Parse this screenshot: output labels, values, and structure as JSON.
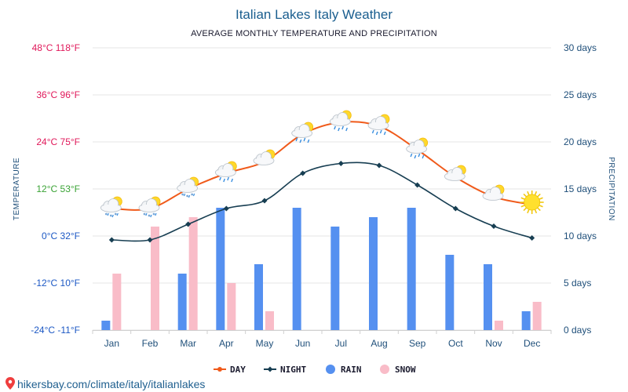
{
  "title": "Italian Lakes Italy Weather",
  "subtitle": "AVERAGE MONTHLY TEMPERATURE AND PRECIPITATION",
  "source": "hikersbay.com/climate/italy/italianlakes",
  "colors": {
    "day": "#f05a1a",
    "night": "#173e52",
    "rain": "#5590f0",
    "snow": "#f9bcc8",
    "title": "#1a5e8f",
    "axis_text": "#1f4f7a",
    "grid": "#e6e6e6"
  },
  "chart_data": {
    "type": "line+bar",
    "title": "Italian Lakes Italy Weather",
    "subtitle": "AVERAGE MONTHLY TEMPERATURE AND PRECIPITATION",
    "ylabel_left": "TEMPERATURE",
    "ylabel_right": "PRECIPITATION",
    "categories": [
      "Jan",
      "Feb",
      "Mar",
      "Apr",
      "May",
      "Jun",
      "Jul",
      "Aug",
      "Sep",
      "Oct",
      "Nov",
      "Dec"
    ],
    "ylim_left": [
      -24,
      48
    ],
    "ylim_right": [
      0,
      30
    ],
    "left_ticks": [
      {
        "value": 48,
        "label": "48°C 118°F",
        "color": "#e0185a"
      },
      {
        "value": 36,
        "label": "36°C 96°F",
        "color": "#e0185a"
      },
      {
        "value": 24,
        "label": "24°C 75°F",
        "color": "#e0185a"
      },
      {
        "value": 12,
        "label": "12°C 53°F",
        "color": "#3aa335"
      },
      {
        "value": 0,
        "label": "0°C 32°F",
        "color": "#1c58c4"
      },
      {
        "value": -12,
        "label": "-12°C 10°F",
        "color": "#1c58c4"
      },
      {
        "value": -24,
        "label": "-24°C -11°F",
        "color": "#1c58c4"
      }
    ],
    "right_ticks": [
      {
        "value": 30,
        "label": "30 days"
      },
      {
        "value": 25,
        "label": "25 days"
      },
      {
        "value": 20,
        "label": "20 days"
      },
      {
        "value": 15,
        "label": "15 days"
      },
      {
        "value": 10,
        "label": "10 days"
      },
      {
        "value": 5,
        "label": "5 days"
      },
      {
        "value": 0,
        "label": "0 days"
      }
    ],
    "grid": true,
    "legend_position": "bottom",
    "series": [
      {
        "name": "DAY",
        "kind": "line",
        "axis": "left",
        "values": [
          7,
          7,
          12,
          16,
          19,
          26,
          29,
          28,
          22,
          15,
          10,
          8
        ]
      },
      {
        "name": "NIGHT",
        "kind": "line",
        "axis": "left",
        "values": [
          -1,
          -1,
          3,
          7,
          9,
          16,
          18.5,
          18,
          13,
          7,
          2.5,
          -0.5
        ]
      },
      {
        "name": "RAIN",
        "kind": "bar",
        "axis": "right",
        "values": [
          1,
          0,
          6,
          13,
          7,
          13,
          11,
          12,
          13,
          8,
          7,
          2
        ]
      },
      {
        "name": "SNOW",
        "kind": "bar",
        "axis": "right",
        "values": [
          6,
          11,
          12,
          5,
          2,
          0,
          0,
          0,
          0,
          0,
          1,
          3
        ]
      }
    ],
    "weather_icons": [
      "sun-cloud-snow-icon",
      "sun-cloud-snow-icon",
      "sun-cloud-snow-icon",
      "sun-cloud-rain-icon",
      "sun-cloud-icon",
      "sun-cloud-rain-icon",
      "sun-cloud-rain-icon",
      "sun-cloud-rain-icon",
      "sun-cloud-rain-icon",
      "sun-cloud-icon",
      "sun-cloud-icon",
      "sun-icon"
    ]
  },
  "legend": [
    {
      "label": "DAY",
      "type": "line",
      "color": "#f05a1a"
    },
    {
      "label": "NIGHT",
      "type": "line",
      "color": "#173e52"
    },
    {
      "label": "RAIN",
      "type": "dot",
      "color": "#5590f0"
    },
    {
      "label": "SNOW",
      "type": "dot",
      "color": "#f9bcc8"
    }
  ]
}
